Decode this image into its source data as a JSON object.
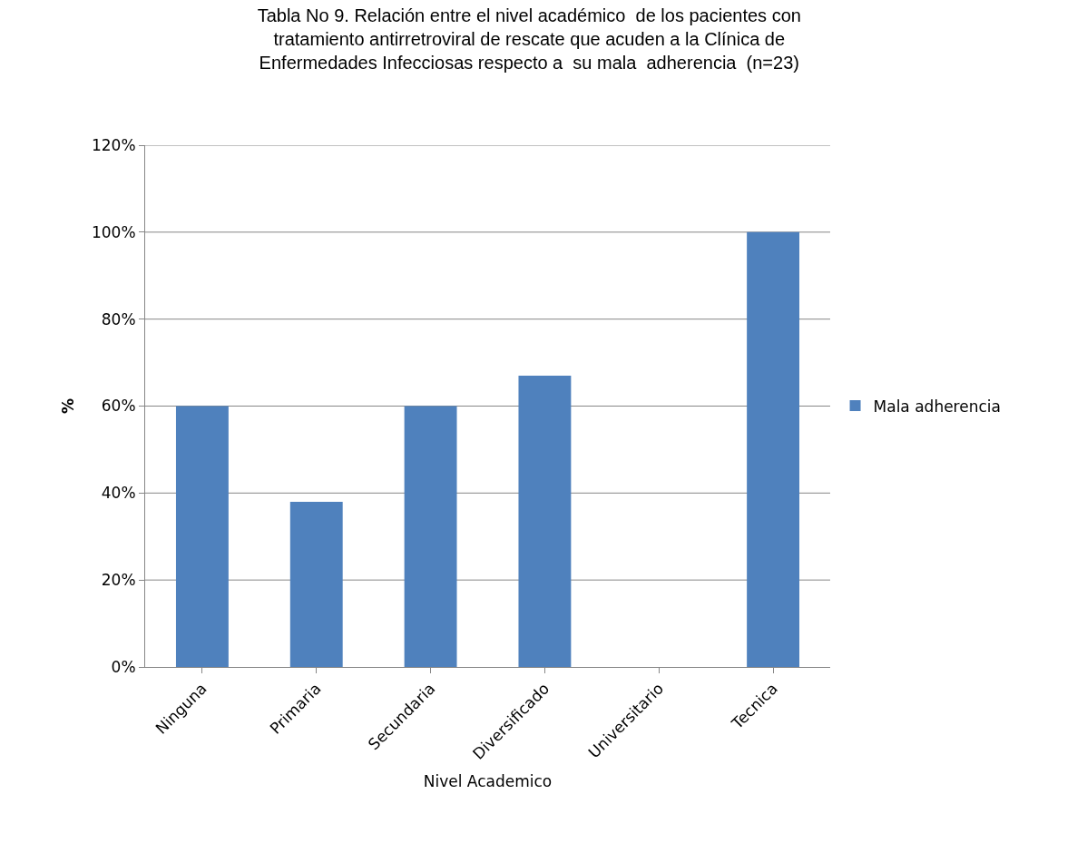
{
  "chart_data": {
    "type": "bar",
    "title": "Tabla No 9. Relación entre el nivel académico  de los pacientes con\ntratamiento antirretroviral de rescate que acuden a la Clínica de\nEnfermedades Infecciosas respecto a  su mala  adherencia  (n=23)",
    "xlabel": "Nivel Academico",
    "ylabel": "%",
    "categories": [
      "Ninguna",
      "Primaria",
      "Secundaria",
      "Diversificado",
      "Universitario",
      "Tecnica"
    ],
    "series": [
      {
        "name": "Mala adherencia",
        "color": "#4f81bd",
        "values": [
          60,
          38,
          60,
          67,
          0,
          100
        ]
      }
    ],
    "ylim": [
      0,
      120
    ],
    "yticks": [
      {
        "value": 0,
        "label": "0%"
      },
      {
        "value": 20,
        "label": "20%"
      },
      {
        "value": 40,
        "label": "40%"
      },
      {
        "value": 60,
        "label": "60%"
      },
      {
        "value": 80,
        "label": "80%"
      },
      {
        "value": 100,
        "label": "100%"
      },
      {
        "value": 120,
        "label": "120%"
      }
    ],
    "grid": "y",
    "legend": "right"
  }
}
